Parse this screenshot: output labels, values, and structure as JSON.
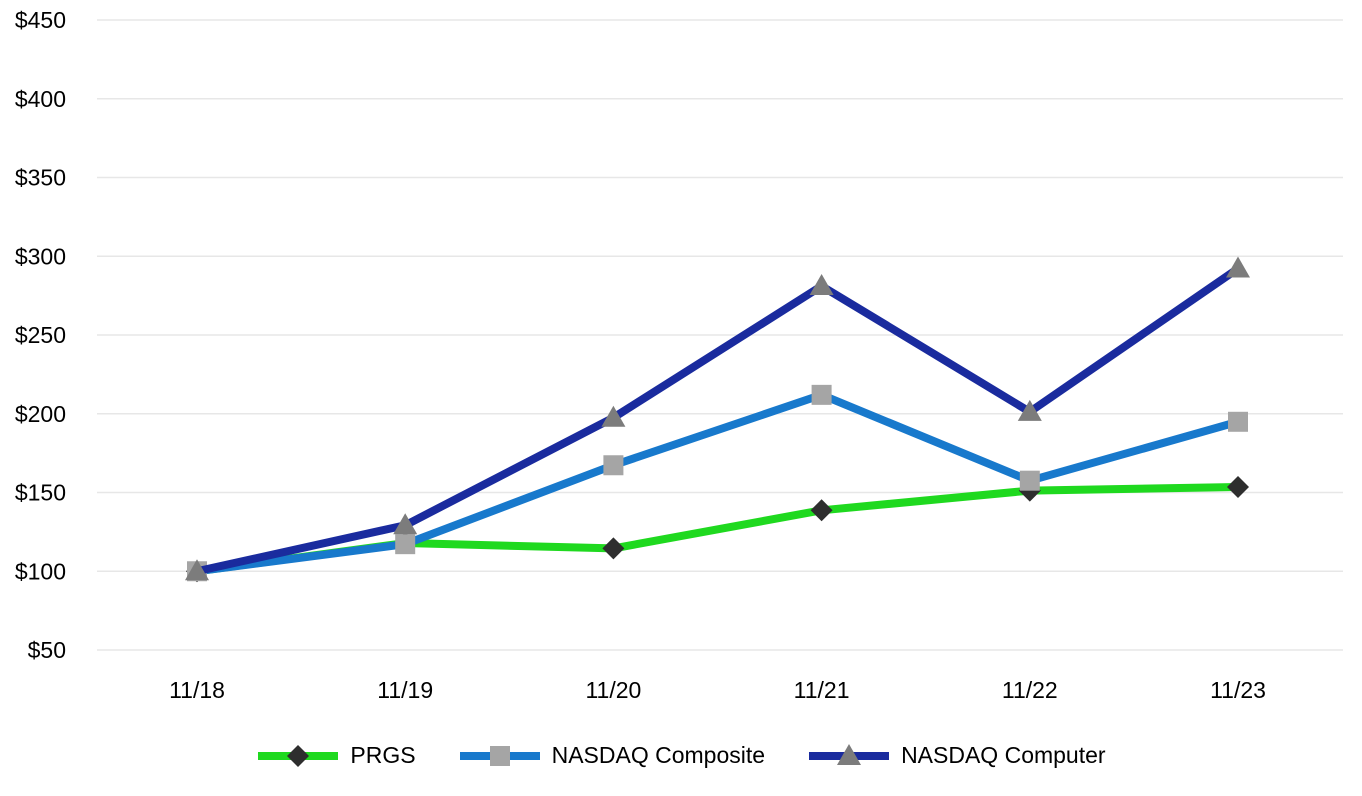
{
  "chart_data": {
    "type": "line",
    "categories": [
      "11/18",
      "11/19",
      "11/20",
      "11/21",
      "11/22",
      "11/23"
    ],
    "series": [
      {
        "name": "PRGS",
        "line_color": "#1FD91F",
        "marker": "diamond",
        "marker_color": "#2E2E2E",
        "values": [
          100,
          117.9,
          114.5,
          138.7,
          151.2,
          153.5
        ]
      },
      {
        "name": "NASDAQ Composite",
        "line_color": "#1879CC",
        "marker": "square",
        "marker_color": "#A5A5A5",
        "values": [
          100,
          117.2,
          167.3,
          212.0,
          157.5,
          194.9
        ]
      },
      {
        "name": "NASDAQ Computer",
        "line_color": "#1A2B9E",
        "marker": "triangle",
        "marker_color": "#7C7C7C",
        "values": [
          100,
          129.2,
          197.5,
          281.1,
          201.2,
          292.2
        ]
      }
    ],
    "y_axis": {
      "prefix": "$",
      "min": 50,
      "max": 450,
      "step": 50,
      "tick_labels": [
        "$450",
        "$400",
        "$350",
        "$300",
        "$250",
        "$200",
        "$150",
        "$100",
        "$50"
      ]
    },
    "x_axis": {
      "tick_labels": [
        "11/18",
        "11/19",
        "11/20",
        "11/21",
        "11/22",
        "11/23"
      ]
    },
    "grid": {
      "horizontal": true,
      "color": "#E7E7E7"
    },
    "legend_position": "bottom",
    "background_color": "#FFFFFF",
    "text_color": "#000000"
  }
}
